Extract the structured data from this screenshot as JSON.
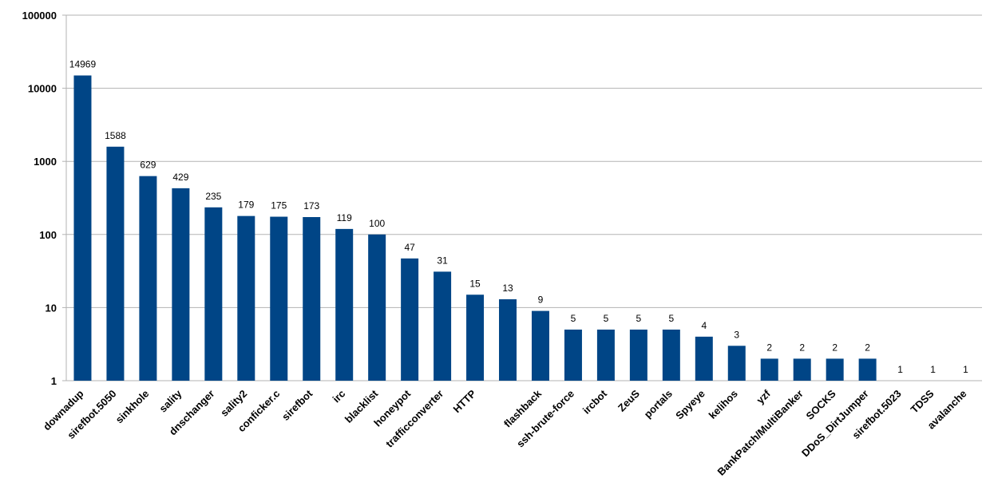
{
  "chart_data": {
    "type": "bar",
    "categories": [
      "downadup",
      "sirefbot.5050",
      "sinkhole",
      "sality",
      "dnschanger",
      "sality2",
      "conficker.c",
      "sirefbot",
      "irc",
      "blacklist",
      "honeypot",
      "trafficconverter",
      "HTTP",
      null,
      "flashback",
      "ssh-brute-force",
      "ircbot",
      "ZeuS",
      "portals",
      "Spyeye",
      "kelihos",
      "yzf",
      "BankPatch/MultiBanker",
      "SOCKS",
      "DDoS_DirtJumper",
      "sirefbot.5023",
      "TDSS",
      "avalanche"
    ],
    "values": [
      14969,
      1588,
      629,
      429,
      235,
      179,
      175,
      173,
      119,
      100,
      47,
      31,
      15,
      13,
      9,
      5,
      5,
      5,
      5,
      4,
      3,
      2,
      2,
      2,
      2,
      1,
      1,
      1
    ],
    "color": "#004586",
    "ylim": [
      1,
      100000
    ],
    "yticks": [
      1,
      10,
      100,
      1000,
      10000,
      100000
    ],
    "log_scale": true,
    "grid": true
  }
}
